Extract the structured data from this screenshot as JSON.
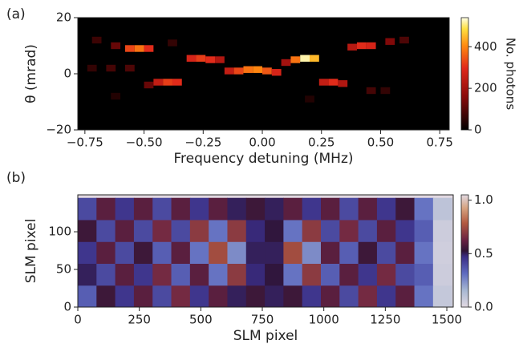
{
  "chart_data": [
    {
      "type": "heatmap",
      "panel_label": "(a)",
      "colormap": "hot",
      "x_label": "Frequency detuning (MHz)",
      "y_label": "θ (mrad)",
      "colorbar_label": "No. photons",
      "xlim": [
        -0.78,
        0.79
      ],
      "ylim": [
        -20,
        20
      ],
      "clim": [
        0,
        540
      ],
      "xticks": [
        {
          "value": -0.75,
          "label": "−0.75"
        },
        {
          "value": -0.5,
          "label": "−0.50"
        },
        {
          "value": -0.25,
          "label": "−0.25"
        },
        {
          "value": 0,
          "label": "0.00"
        },
        0.25,
        {
          "value": 0.5,
          "label": "0.50"
        },
        0.75
      ],
      "yticks": [
        {
          "value": -20,
          "label": "−20"
        },
        0,
        20
      ],
      "cticks": [
        0,
        200,
        400
      ],
      "x": [
        -0.14,
        -0.1,
        -0.06,
        -0.02,
        0.02,
        0.06,
        -0.62,
        -0.56,
        -0.52,
        -0.48,
        -0.3,
        -0.26,
        -0.22,
        -0.18,
        -0.48,
        -0.44,
        -0.4,
        -0.36,
        0.1,
        0.14,
        0.18,
        0.22,
        0.38,
        0.42,
        0.46,
        0.54,
        0.6,
        0.26,
        0.3,
        0.34,
        -0.72,
        -0.64,
        -0.56,
        -0.7,
        -0.62,
        0.46,
        0.52,
        0.2,
        -0.38
      ],
      "y": [
        1,
        1,
        1.5,
        1.5,
        1,
        0.5,
        10,
        9,
        9,
        9,
        5.5,
        5.5,
        5,
        5,
        -4,
        -3,
        -3,
        -3,
        4,
        5,
        5.5,
        5.5,
        9.5,
        10,
        10,
        11.5,
        12,
        -3,
        -3,
        -3.5,
        2,
        2,
        2,
        12,
        -8,
        -6,
        -6,
        -9,
        11
      ],
      "values": [
        250,
        330,
        380,
        400,
        350,
        280,
        120,
        330,
        380,
        300,
        280,
        320,
        300,
        220,
        120,
        250,
        320,
        300,
        200,
        380,
        520,
        450,
        230,
        300,
        280,
        150,
        90,
        250,
        300,
        220,
        60,
        80,
        90,
        70,
        40,
        80,
        60,
        40,
        60
      ]
    },
    {
      "type": "heatmap",
      "panel_label": "(b)",
      "colormap": "twilight",
      "x_label": "SLM pixel",
      "y_label": "SLM pixel",
      "xlim": [
        0,
        1526
      ],
      "ylim": [
        0,
        149
      ],
      "clim": [
        0,
        1.05
      ],
      "extent": [
        0,
        1520,
        0,
        145
      ],
      "xticks": [
        0,
        250,
        500,
        750,
        1000,
        1250,
        1500
      ],
      "yticks": [
        0,
        50,
        100
      ],
      "cticks": [
        {
          "value": 0,
          "label": "0.0"
        },
        {
          "value": 0.5,
          "label": "0.5"
        },
        {
          "value": 1,
          "label": "1.0"
        }
      ],
      "z": [
        [
          0.35,
          0.55,
          0.45,
          0.6,
          0.4,
          0.65,
          0.45,
          0.6,
          0.5,
          0.55,
          0.5,
          0.55,
          0.45,
          0.6,
          0.4,
          0.65,
          0.45,
          0.6,
          0.3,
          0.08
        ],
        [
          0.5,
          0.4,
          0.6,
          0.45,
          0.65,
          0.35,
          0.6,
          0.3,
          0.7,
          0.48,
          0.52,
          0.3,
          0.7,
          0.35,
          0.6,
          0.45,
          0.65,
          0.4,
          0.35,
          0.06
        ],
        [
          0.45,
          0.6,
          0.4,
          0.55,
          0.35,
          0.6,
          0.3,
          0.75,
          0.25,
          0.5,
          0.5,
          0.75,
          0.25,
          0.6,
          0.35,
          0.55,
          0.4,
          0.6,
          0.3,
          0.05
        ],
        [
          0.55,
          0.4,
          0.6,
          0.4,
          0.65,
          0.4,
          0.7,
          0.3,
          0.7,
          0.48,
          0.52,
          0.3,
          0.7,
          0.4,
          0.65,
          0.4,
          0.6,
          0.45,
          0.35,
          0.06
        ],
        [
          0.4,
          0.6,
          0.45,
          0.6,
          0.4,
          0.6,
          0.45,
          0.6,
          0.5,
          0.55,
          0.5,
          0.6,
          0.45,
          0.6,
          0.4,
          0.6,
          0.45,
          0.55,
          0.3,
          0.1
        ]
      ]
    }
  ]
}
